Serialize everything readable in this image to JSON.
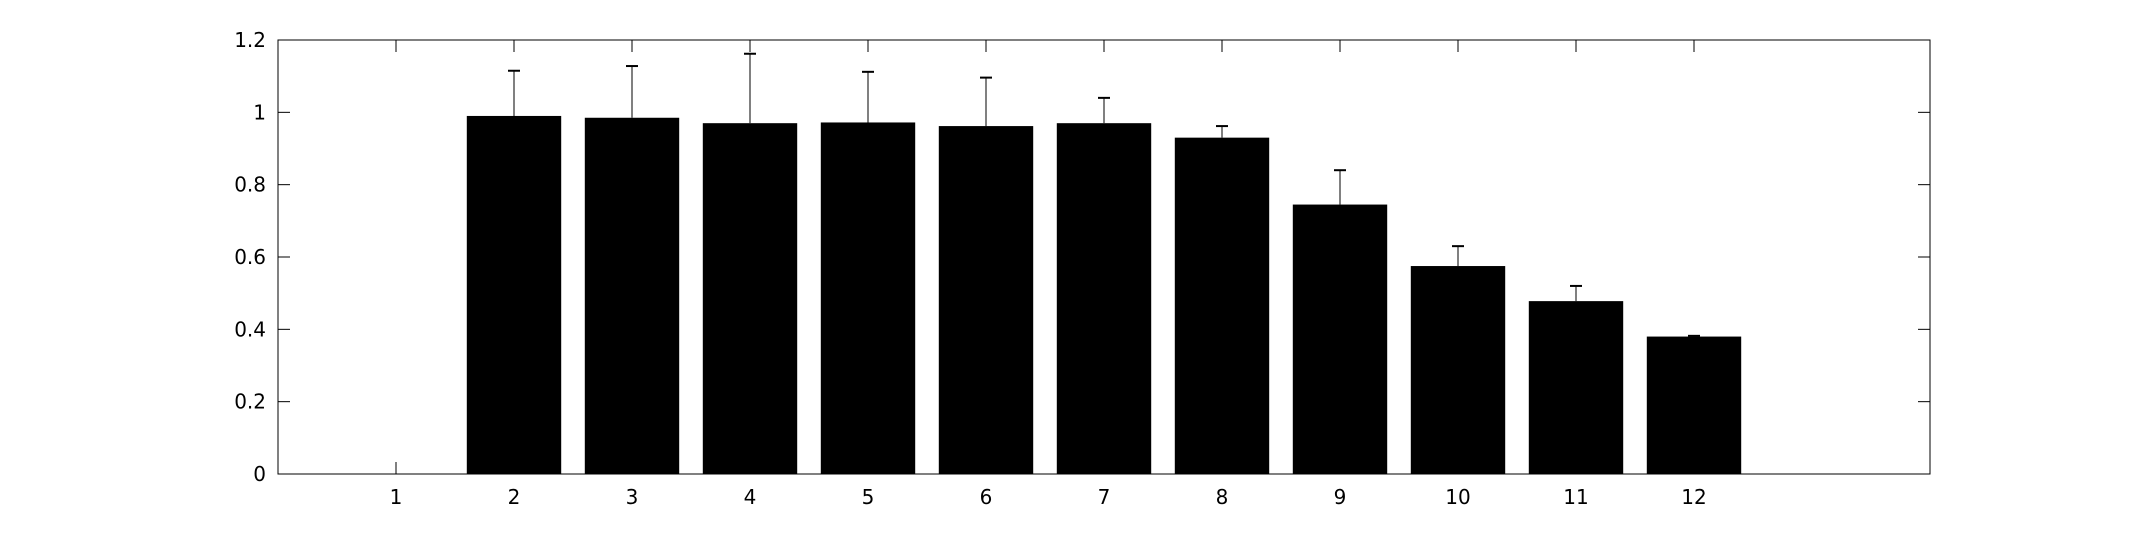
{
  "chart_data": {
    "type": "bar",
    "title": "",
    "xlabel": "",
    "ylabel": "",
    "categories": [
      "1",
      "2",
      "3",
      "4",
      "5",
      "6",
      "7",
      "8",
      "9",
      "10",
      "11",
      "12"
    ],
    "values": [
      null,
      0.99,
      0.985,
      0.97,
      0.972,
      0.962,
      0.97,
      0.93,
      0.745,
      0.575,
      0.478,
      0.38
    ],
    "error_upper": [
      null,
      1.115,
      1.128,
      1.162,
      1.112,
      1.096,
      1.04,
      0.962,
      0.84,
      0.63,
      0.52,
      0.382
    ],
    "xlim": [
      0,
      14
    ],
    "ylim": [
      0,
      1.2
    ],
    "yticks": [
      0,
      0.2,
      0.4,
      0.6,
      0.8,
      1,
      1.2
    ],
    "ytick_labels": [
      "0",
      "0.2",
      "0.4",
      "0.6",
      "0.8",
      "1",
      "1.2"
    ],
    "bar_color": "#000000",
    "grid": false,
    "legend": "none"
  }
}
